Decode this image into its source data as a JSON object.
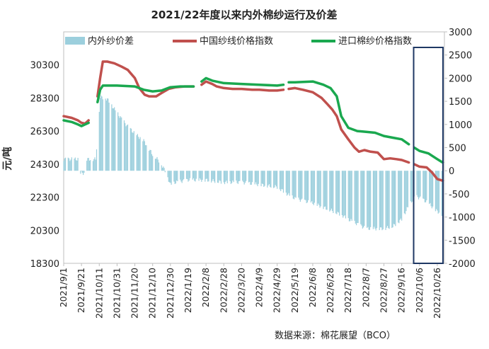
{
  "chart_data": {
    "type": "bar+line",
    "title": "2021/22年度以来内外棉纱运行及价差",
    "ylabel": "元/吨",
    "source": "数据来源：棉花展望（BCO）",
    "legend_position": "top",
    "grid": false,
    "left_axis": {
      "ylim": [
        18300,
        32300
      ],
      "ticks": [
        "30300",
        "28300",
        "26300",
        "24300",
        "22300",
        "20300",
        "18300"
      ],
      "tick_values": [
        30300,
        28300,
        26300,
        24300,
        22300,
        20300,
        18300
      ]
    },
    "right_axis": {
      "ylim": [
        -2000,
        3000
      ],
      "ticks": [
        "3000",
        "2500",
        "2000",
        "1500",
        "1000",
        "500",
        "0",
        "-500",
        "-1000",
        "-1500",
        "-2000"
      ],
      "tick_values": [
        3000,
        2500,
        2000,
        1500,
        1000,
        500,
        0,
        -500,
        -1000,
        -1500,
        -2000
      ]
    },
    "x_labels": [
      "2021/9/1",
      "2021/9/21",
      "2021/10/11",
      "2021/10/31",
      "2021/11/20",
      "2021/12/10",
      "2021/12/30",
      "2022/1/19",
      "2022/2/8",
      "2022/2/28",
      "2022/3/20",
      "2022/4/9",
      "2022/4/29",
      "2022/5/19",
      "2022/6/8",
      "2022/6/28",
      "2022/7/18",
      "2022/8/7",
      "2022/8/27",
      "2022/9/16",
      "2022/10/6",
      "2022/10/26"
    ],
    "x_range": [
      "2021/9/1",
      "2022/11/3"
    ],
    "highlight_range": [
      "2022/10/1",
      "2022/11/3"
    ],
    "series": [
      {
        "name": "内外纱价差",
        "type": "bar",
        "axis": "right",
        "color": "#9ccfdd",
        "points": [
          [
            "2021/9/1",
            250
          ],
          [
            "2021/9/18",
            250
          ],
          [
            "2021/9/20",
            -50
          ],
          [
            "2021/9/24",
            -50
          ],
          [
            "2021/9/26",
            250
          ],
          [
            "2021/10/7",
            250
          ],
          [
            "2021/10/10",
            1000
          ],
          [
            "2021/10/12",
            1600
          ],
          [
            "2021/10/20",
            1550
          ],
          [
            "2021/10/31",
            1250
          ],
          [
            "2021/11/10",
            1000
          ],
          [
            "2021/11/20",
            800
          ],
          [
            "2021/11/30",
            650
          ],
          [
            "2021/12/10",
            350
          ],
          [
            "2021/12/18",
            200
          ],
          [
            "2021/12/24",
            0
          ],
          [
            "2021/12/26",
            -100
          ],
          [
            "2021/12/30",
            -300
          ],
          [
            "2022/1/5",
            -250
          ],
          [
            "2022/1/19",
            -200
          ],
          [
            "2022/1/28",
            -200
          ],
          [
            "2022/2/8",
            -200
          ],
          [
            "2022/2/28",
            -250
          ],
          [
            "2022/3/20",
            -250
          ],
          [
            "2022/4/9",
            -300
          ],
          [
            "2022/4/29",
            -350
          ],
          [
            "2022/5/10",
            -500
          ],
          [
            "2022/5/19",
            -600
          ],
          [
            "2022/6/8",
            -700
          ],
          [
            "2022/6/28",
            -850
          ],
          [
            "2022/7/10",
            -950
          ],
          [
            "2022/7/18",
            -1050
          ],
          [
            "2022/7/28",
            -1150
          ],
          [
            "2022/8/7",
            -1250
          ],
          [
            "2022/8/17",
            -1250
          ],
          [
            "2022/8/27",
            -1250
          ],
          [
            "2022/9/6",
            -1200
          ],
          [
            "2022/9/16",
            -1050
          ],
          [
            "2022/9/24",
            -750
          ],
          [
            "2022/10/1",
            -550
          ],
          [
            "2022/10/8",
            -600
          ],
          [
            "2022/10/16",
            -700
          ],
          [
            "2022/10/24",
            -850
          ],
          [
            "2022/11/1",
            -950
          ]
        ]
      },
      {
        "name": "中国纱线价格指数",
        "type": "line",
        "axis": "left",
        "color": "#c0504d",
        "points": [
          [
            "2021/9/1",
            27200
          ],
          [
            "2021/9/10",
            27100
          ],
          [
            "2021/9/17",
            26950
          ],
          [
            "2021/9/21",
            26800
          ],
          [
            "2021/9/25",
            26750
          ],
          [
            "2021/9/29",
            26950
          ],
          [
            "null",
            null
          ],
          [
            "2021/10/9",
            28400
          ],
          [
            "2021/10/12",
            29500
          ],
          [
            "2021/10/15",
            30500
          ],
          [
            "2021/10/20",
            30500
          ],
          [
            "2021/10/28",
            30400
          ],
          [
            "2021/11/5",
            30200
          ],
          [
            "2021/11/12",
            30000
          ],
          [
            "2021/11/20",
            29500
          ],
          [
            "2021/11/25",
            28900
          ],
          [
            "2021/12/1",
            28500
          ],
          [
            "2021/12/6",
            28400
          ],
          [
            "2021/12/14",
            28400
          ],
          [
            "2021/12/20",
            28600
          ],
          [
            "2021/12/28",
            28850
          ],
          [
            "2022/1/5",
            28950
          ],
          [
            "2022/1/15",
            29000
          ],
          [
            "2022/1/25",
            29000
          ],
          [
            "null",
            null
          ],
          [
            "2022/2/3",
            29100
          ],
          [
            "2022/2/8",
            29300
          ],
          [
            "2022/2/15",
            29150
          ],
          [
            "2022/2/20",
            29000
          ],
          [
            "2022/2/28",
            28900
          ],
          [
            "2022/3/10",
            28850
          ],
          [
            "2022/3/20",
            28850
          ],
          [
            "2022/4/1",
            28800
          ],
          [
            "2022/4/9",
            28800
          ],
          [
            "2022/4/20",
            28750
          ],
          [
            "2022/4/29",
            28750
          ],
          [
            "2022/5/6",
            28800
          ],
          [
            "null",
            null
          ],
          [
            "2022/5/12",
            28850
          ],
          [
            "2022/5/19",
            28900
          ],
          [
            "2022/5/28",
            28800
          ],
          [
            "2022/6/8",
            28650
          ],
          [
            "2022/6/18",
            28300
          ],
          [
            "2022/6/25",
            27900
          ],
          [
            "2022/6/30",
            27600
          ],
          [
            "2022/7/5",
            27200
          ],
          [
            "2022/7/10",
            26400
          ],
          [
            "2022/7/18",
            25800
          ],
          [
            "2022/7/25",
            25300
          ],
          [
            "2022/7/30",
            25050
          ],
          [
            "2022/8/5",
            25150
          ],
          [
            "2022/8/12",
            25050
          ],
          [
            "2022/8/20",
            25000
          ],
          [
            "2022/8/27",
            24600
          ],
          [
            "2022/9/3",
            24650
          ],
          [
            "2022/9/10",
            24600
          ],
          [
            "2022/9/16",
            24550
          ],
          [
            "2022/9/24",
            24400
          ],
          [
            "null",
            null
          ],
          [
            "2022/9/30",
            24300
          ],
          [
            "2022/10/6",
            24150
          ],
          [
            "2022/10/14",
            24100
          ],
          [
            "2022/10/20",
            23800
          ],
          [
            "2022/10/26",
            23400
          ],
          [
            "2022/11/1",
            23300
          ]
        ]
      },
      {
        "name": "进口棉纱价格指数",
        "type": "line",
        "axis": "left",
        "color": "#1aa84f",
        "points": [
          [
            "2021/9/1",
            26950
          ],
          [
            "2021/9/10",
            26850
          ],
          [
            "2021/9/17",
            26700
          ],
          [
            "2021/9/21",
            26600
          ],
          [
            "2021/9/25",
            26700
          ],
          [
            "2021/9/29",
            26800
          ],
          [
            "null",
            null
          ],
          [
            "2021/10/9",
            28050
          ],
          [
            "2021/10/12",
            28800
          ],
          [
            "2021/10/15",
            29050
          ],
          [
            "2021/10/31",
            29050
          ],
          [
            "2021/11/20",
            29000
          ],
          [
            "2021/11/30",
            28800
          ],
          [
            "2021/12/10",
            28700
          ],
          [
            "2021/12/20",
            28750
          ],
          [
            "2021/12/30",
            28950
          ],
          [
            "2022/1/10",
            29000
          ],
          [
            "2022/1/25",
            29000
          ],
          [
            "null",
            null
          ],
          [
            "2022/2/3",
            29300
          ],
          [
            "2022/2/8",
            29500
          ],
          [
            "2022/2/15",
            29350
          ],
          [
            "2022/2/28",
            29200
          ],
          [
            "2022/3/20",
            29150
          ],
          [
            "2022/4/9",
            29100
          ],
          [
            "2022/4/29",
            29050
          ],
          [
            "2022/5/6",
            29100
          ],
          [
            "null",
            null
          ],
          [
            "2022/5/12",
            29250
          ],
          [
            "2022/5/19",
            29250
          ],
          [
            "2022/6/8",
            29300
          ],
          [
            "2022/6/20",
            29100
          ],
          [
            "2022/6/28",
            28900
          ],
          [
            "2022/7/5",
            28400
          ],
          [
            "2022/7/10",
            27200
          ],
          [
            "2022/7/18",
            26500
          ],
          [
            "2022/7/28",
            26300
          ],
          [
            "2022/8/7",
            26250
          ],
          [
            "2022/8/17",
            26200
          ],
          [
            "2022/8/27",
            26000
          ],
          [
            "2022/9/6",
            25900
          ],
          [
            "2022/9/16",
            25800
          ],
          [
            "2022/9/24",
            25500
          ],
          [
            "null",
            null
          ],
          [
            "2022/9/30",
            25300
          ],
          [
            "2022/10/6",
            25100
          ],
          [
            "2022/10/16",
            24950
          ],
          [
            "2022/10/26",
            24600
          ],
          [
            "2022/11/1",
            24400
          ]
        ]
      }
    ]
  }
}
